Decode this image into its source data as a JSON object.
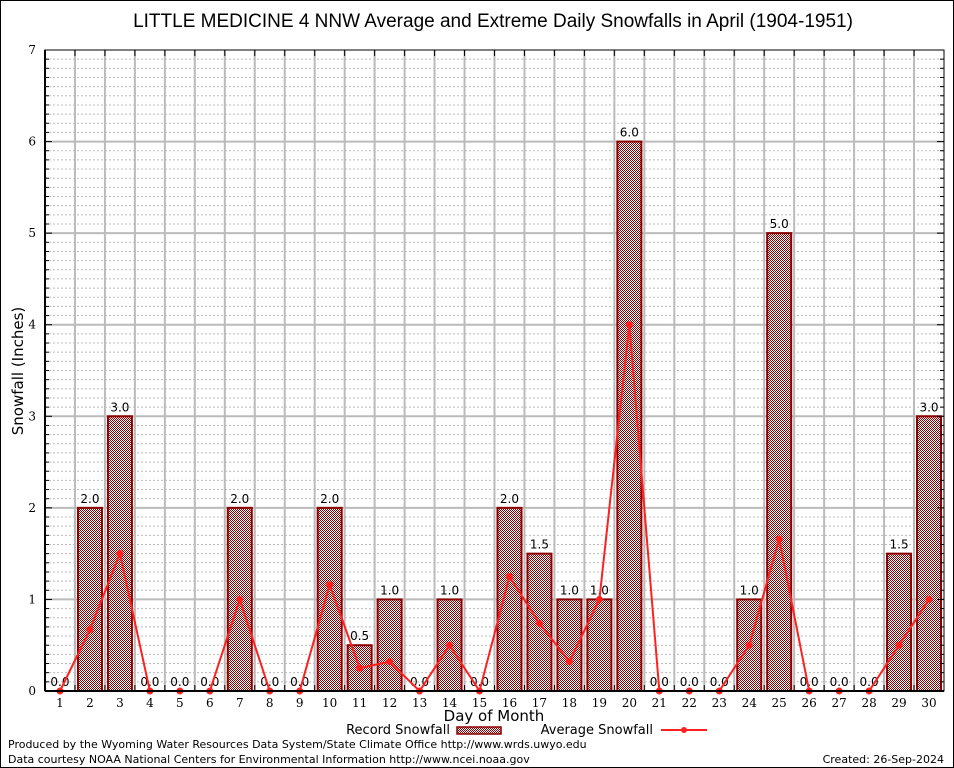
{
  "chart_data": {
    "type": "bar",
    "title": "LITTLE MEDICINE 4 NNW Average and Extreme Daily Snowfalls in April (1904-1951)",
    "xlabel": "Day of Month",
    "ylabel": "Snowfall (Inches)",
    "ylim": [
      0,
      7
    ],
    "yticks": [
      "0",
      "1",
      "2",
      "3",
      "4",
      "5",
      "6",
      "7"
    ],
    "grid": true,
    "categories": [
      "1",
      "2",
      "3",
      "4",
      "5",
      "6",
      "7",
      "8",
      "9",
      "10",
      "11",
      "12",
      "13",
      "14",
      "15",
      "16",
      "17",
      "18",
      "19",
      "20",
      "21",
      "22",
      "23",
      "24",
      "25",
      "26",
      "27",
      "28",
      "29",
      "30"
    ],
    "series": [
      {
        "name": "Record Snowfall",
        "type": "bar",
        "color": "#8b0000",
        "values": [
          0.0,
          2.0,
          3.0,
          0.0,
          0.0,
          0.0,
          2.0,
          0.0,
          0.0,
          2.0,
          0.5,
          1.0,
          0.0,
          1.0,
          0.0,
          2.0,
          1.5,
          1.0,
          1.0,
          6.0,
          0.0,
          0.0,
          0.0,
          1.0,
          5.0,
          0.0,
          0.0,
          0.0,
          1.5,
          3.0
        ],
        "labels": [
          "0.0",
          "2.0",
          "3.0",
          "0.0",
          "0.0",
          "0.0",
          "2.0",
          "0.0",
          "0.0",
          "2.0",
          "0.5",
          "1.0",
          "0.0",
          "1.0",
          "0.0",
          "2.0",
          "1.5",
          "1.0",
          "1.0",
          "6.0",
          "0.0",
          "0.0",
          "0.0",
          "1.0",
          "5.0",
          "0.0",
          "0.0",
          "0.0",
          "1.5",
          "3.0"
        ]
      },
      {
        "name": "Average Snowfall",
        "type": "line",
        "color": "#ff2020",
        "values": [
          0.0,
          0.67,
          1.5,
          0.0,
          0.0,
          0.0,
          1.0,
          0.0,
          0.0,
          1.16,
          0.25,
          0.32,
          0.0,
          0.5,
          0.0,
          1.25,
          0.74,
          0.32,
          1.0,
          4.0,
          0.0,
          0.0,
          0.0,
          0.5,
          1.66,
          0.0,
          0.0,
          0.0,
          0.5,
          1.0
        ]
      }
    ],
    "legend": "bottom-center"
  },
  "footer": {
    "line1": "Produced by the Wyoming Water Resources Data System/State Climate Office http://www.wrds.uwyo.edu",
    "line2": "Data courtesy NOAA National Centers for Environmental Information http://www.ncei.noaa.gov",
    "created": "Created: 26-Sep-2024"
  }
}
